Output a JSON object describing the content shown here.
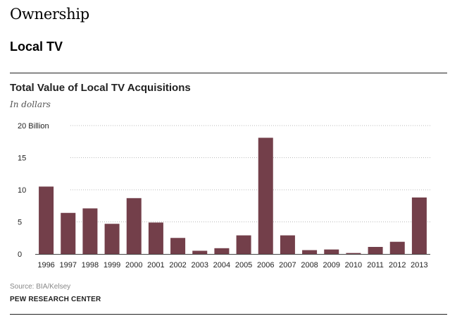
{
  "page": {
    "section_title": "Ownership",
    "sub_title": "Local TV",
    "source": "Source: BIA/Kelsey",
    "organization": "PEW RESEARCH CENTER"
  },
  "colors": {
    "bar": "#733f4a",
    "grid": "#bbbbbb",
    "axis": "#444444"
  },
  "chart_data": {
    "type": "bar",
    "title": "Total Value of Local TV Acquisitions",
    "subtitle": "In dollars",
    "xlabel": "",
    "ylabel": "",
    "ylim": [
      0,
      20
    ],
    "yticks": [
      0,
      5,
      10,
      15,
      20
    ],
    "ytick_labels": [
      "0",
      "5",
      "10",
      "15",
      "20  Billion"
    ],
    "grid": true,
    "categories": [
      "1996",
      "1997",
      "1998",
      "1999",
      "2000",
      "2001",
      "2002",
      "2003",
      "2004",
      "2005",
      "2006",
      "2007",
      "2008",
      "2009",
      "2010",
      "2011",
      "2012",
      "2013"
    ],
    "values": [
      10.5,
      6.4,
      7.1,
      4.7,
      8.7,
      4.9,
      2.5,
      0.5,
      0.9,
      2.9,
      18.1,
      2.9,
      0.6,
      0.7,
      0.15,
      1.1,
      1.9,
      8.8
    ]
  }
}
